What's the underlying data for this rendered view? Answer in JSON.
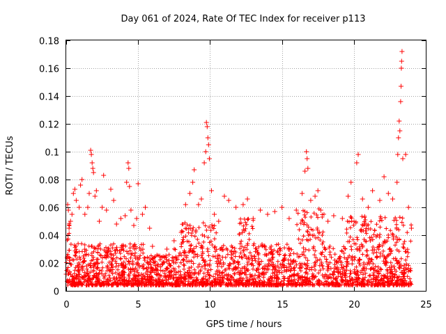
{
  "chart_data": {
    "type": "scatter",
    "title": "Day 061 of 2024, Rate Of TEC Index for receiver p113",
    "xlabel": "GPS time / hours",
    "ylabel": "ROTI / TECUs",
    "xlim": [
      0,
      25
    ],
    "ylim": [
      0,
      0.18
    ],
    "xticks": [
      0,
      5,
      10,
      15,
      20,
      25
    ],
    "xtick_labels": [
      "0",
      "5",
      "10",
      "15",
      "20",
      "25"
    ],
    "yticks": [
      0,
      0.02,
      0.04,
      0.06,
      0.08,
      0.1,
      0.12,
      0.14,
      0.16,
      0.18
    ],
    "ytick_labels": [
      "0",
      "0.02",
      "0.04",
      "0.06",
      "0.08",
      "0.1",
      "0.12",
      "0.14",
      "0.16",
      "0.18"
    ],
    "grid": true,
    "marker": "plus",
    "color": "#ff0000",
    "series": [
      {
        "values": [
          [
            0.0,
            0.012
          ],
          [
            0.1,
            0.062
          ],
          [
            0.15,
            0.058
          ],
          [
            0.2,
            0.045
          ],
          [
            0.3,
            0.05
          ],
          [
            0.4,
            0.055
          ],
          [
            0.5,
            0.07
          ],
          [
            0.6,
            0.073
          ],
          [
            0.7,
            0.065
          ],
          [
            0.9,
            0.06
          ],
          [
            1.0,
            0.076
          ],
          [
            1.1,
            0.08
          ],
          [
            1.3,
            0.055
          ],
          [
            1.5,
            0.06
          ],
          [
            1.6,
            0.07
          ],
          [
            1.7,
            0.101
          ],
          [
            1.75,
            0.098
          ],
          [
            1.8,
            0.092
          ],
          [
            1.85,
            0.088
          ],
          [
            1.9,
            0.085
          ],
          [
            2.0,
            0.068
          ],
          [
            2.1,
            0.072
          ],
          [
            2.3,
            0.05
          ],
          [
            2.5,
            0.06
          ],
          [
            2.6,
            0.083
          ],
          [
            2.8,
            0.058
          ],
          [
            3.1,
            0.073
          ],
          [
            3.3,
            0.065
          ],
          [
            3.5,
            0.048
          ],
          [
            3.8,
            0.052
          ],
          [
            4.1,
            0.054
          ],
          [
            4.2,
            0.078
          ],
          [
            4.3,
            0.092
          ],
          [
            4.35,
            0.088
          ],
          [
            4.4,
            0.075
          ],
          [
            4.5,
            0.058
          ],
          [
            4.7,
            0.047
          ],
          [
            4.9,
            0.052
          ],
          [
            5.0,
            0.077
          ],
          [
            5.3,
            0.055
          ],
          [
            5.5,
            0.06
          ],
          [
            5.8,
            0.045
          ],
          [
            6.0,
            0.032
          ],
          [
            6.5,
            0.025
          ],
          [
            7.0,
            0.03
          ],
          [
            7.5,
            0.036
          ],
          [
            8.0,
            0.042
          ],
          [
            8.3,
            0.062
          ],
          [
            8.6,
            0.07
          ],
          [
            8.8,
            0.078
          ],
          [
            8.9,
            0.087
          ],
          [
            9.2,
            0.062
          ],
          [
            9.4,
            0.066
          ],
          [
            9.6,
            0.092
          ],
          [
            9.7,
            0.1
          ],
          [
            9.75,
            0.121
          ],
          [
            9.8,
            0.118
          ],
          [
            9.85,
            0.11
          ],
          [
            9.9,
            0.105
          ],
          [
            9.95,
            0.095
          ],
          [
            10.1,
            0.072
          ],
          [
            10.3,
            0.055
          ],
          [
            10.6,
            0.05
          ],
          [
            11.0,
            0.068
          ],
          [
            11.3,
            0.065
          ],
          [
            11.8,
            0.06
          ],
          [
            12.3,
            0.062
          ],
          [
            12.6,
            0.066
          ],
          [
            13.0,
            0.052
          ],
          [
            13.5,
            0.058
          ],
          [
            14.0,
            0.055
          ],
          [
            14.5,
            0.057
          ],
          [
            15.0,
            0.06
          ],
          [
            15.5,
            0.052
          ],
          [
            16.0,
            0.058
          ],
          [
            16.4,
            0.07
          ],
          [
            16.6,
            0.086
          ],
          [
            16.7,
            0.1
          ],
          [
            16.75,
            0.095
          ],
          [
            16.8,
            0.088
          ],
          [
            17.0,
            0.065
          ],
          [
            17.3,
            0.068
          ],
          [
            17.5,
            0.072
          ],
          [
            17.7,
            0.058
          ],
          [
            18.2,
            0.05
          ],
          [
            18.6,
            0.054
          ],
          [
            19.2,
            0.052
          ],
          [
            19.6,
            0.068
          ],
          [
            19.8,
            0.078
          ],
          [
            20.2,
            0.092
          ],
          [
            20.3,
            0.098
          ],
          [
            20.6,
            0.066
          ],
          [
            21.0,
            0.06
          ],
          [
            21.3,
            0.072
          ],
          [
            21.8,
            0.065
          ],
          [
            22.1,
            0.082
          ],
          [
            22.4,
            0.07
          ],
          [
            22.7,
            0.066
          ],
          [
            23.0,
            0.078
          ],
          [
            23.05,
            0.098
          ],
          [
            23.1,
            0.11
          ],
          [
            23.15,
            0.122
          ],
          [
            23.2,
            0.115
          ],
          [
            23.25,
            0.136
          ],
          [
            23.28,
            0.147
          ],
          [
            23.3,
            0.16
          ],
          [
            23.32,
            0.165
          ],
          [
            23.35,
            0.172
          ],
          [
            23.4,
            0.095
          ],
          [
            23.6,
            0.098
          ],
          [
            23.8,
            0.06
          ],
          [
            24.0,
            0.045
          ]
        ]
      }
    ]
  }
}
